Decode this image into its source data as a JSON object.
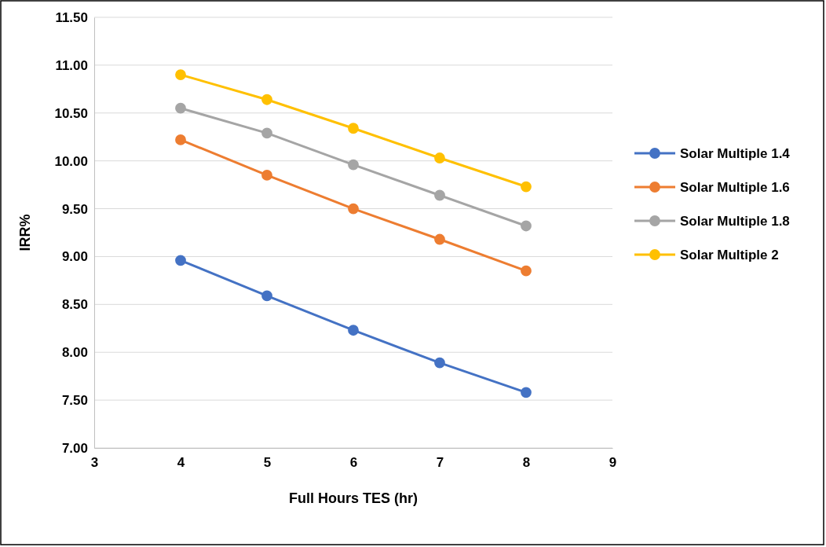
{
  "chart_data": {
    "type": "line",
    "xlabel": "Full Hours TES (hr)",
    "ylabel": "IRR%",
    "x": [
      4,
      5,
      6,
      7,
      8
    ],
    "xlim": [
      3,
      9
    ],
    "xticks": [
      3,
      4,
      5,
      6,
      7,
      8,
      9
    ],
    "ylim": [
      7,
      11.5
    ],
    "yticks": [
      {
        "value": 7,
        "label": "7.00"
      },
      {
        "value": 7.5,
        "label": "7.50"
      },
      {
        "value": 8,
        "label": "8.00"
      },
      {
        "value": 8.5,
        "label": "8.50"
      },
      {
        "value": 9,
        "label": "9.00"
      },
      {
        "value": 9.5,
        "label": "9.50"
      },
      {
        "value": 10,
        "label": "10.00"
      },
      {
        "value": 10.5,
        "label": "10.50"
      },
      {
        "value": 11,
        "label": "11.00"
      },
      {
        "value": 11.5,
        "label": "11.50"
      }
    ],
    "grid": "y",
    "legend": "right",
    "marker": "circle",
    "line_style": "solid",
    "series": [
      {
        "name": "Solar Multiple 1.4",
        "color": "#4472c4",
        "values": [
          8.96,
          8.59,
          8.23,
          7.89,
          7.58
        ]
      },
      {
        "name": "Solar Multiple 1.6",
        "color": "#ed7d31",
        "values": [
          10.22,
          9.85,
          9.5,
          9.18,
          8.85
        ]
      },
      {
        "name": "Solar Multiple 1.8",
        "color": "#a5a5a5",
        "values": [
          10.55,
          10.29,
          9.96,
          9.64,
          9.32
        ]
      },
      {
        "name": "Solar Multiple 2",
        "color": "#ffc000",
        "values": [
          10.9,
          10.64,
          10.34,
          10.03,
          9.73
        ]
      }
    ]
  }
}
